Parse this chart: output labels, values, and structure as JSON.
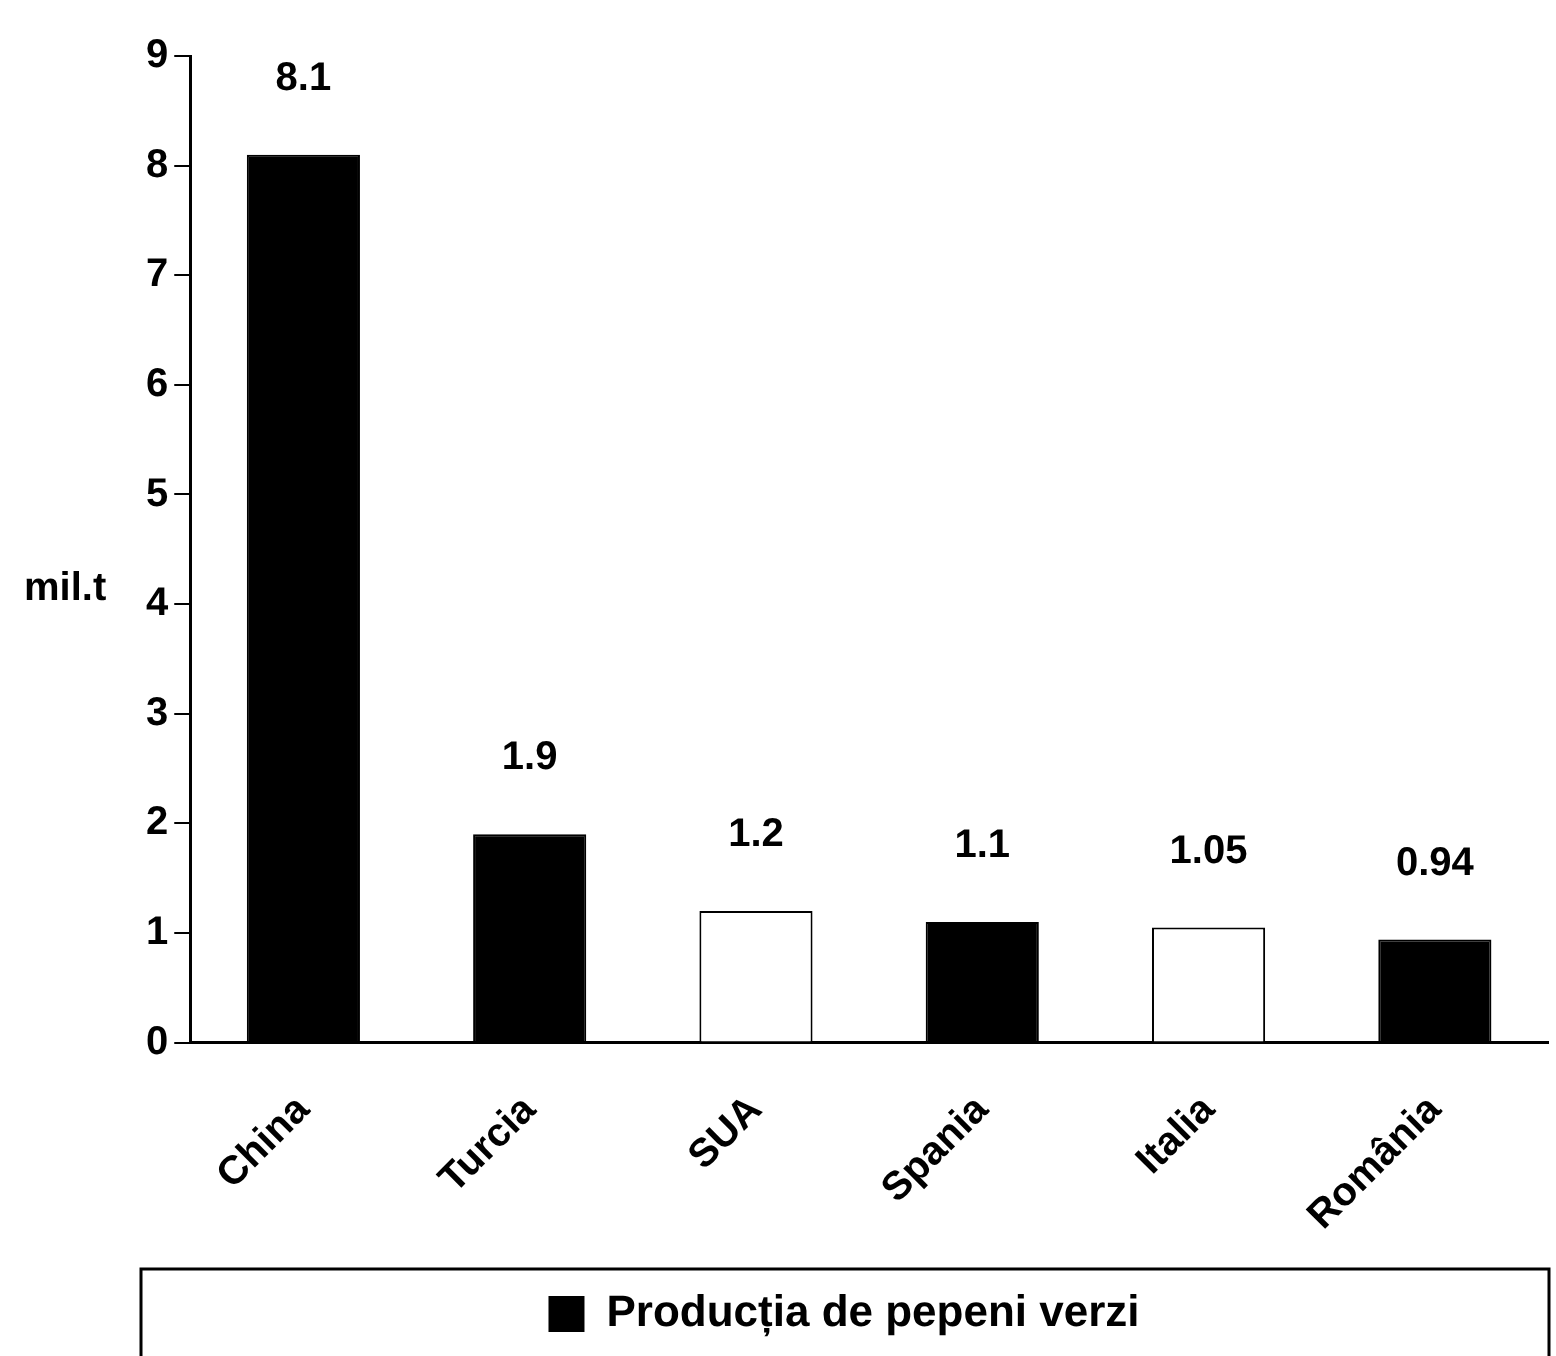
{
  "chart_data": {
    "type": "bar",
    "ylabel": "mil.t",
    "categories": [
      "China",
      "Turcia",
      "SUA",
      "Spania",
      "Italia",
      "România"
    ],
    "series": [
      {
        "name": "Producția de pepeni verzi",
        "color": "#000000",
        "colors": [
          "#000000",
          "#000000",
          "#ffffff",
          "#000000",
          "#ffffff",
          "#000000"
        ],
        "values": [
          8.1,
          1.9,
          1.2,
          1.1,
          1.05,
          0.94
        ]
      }
    ],
    "ylim": [
      0,
      9
    ],
    "yticks": [
      0,
      1,
      2,
      3,
      4,
      5,
      6,
      7,
      8,
      9
    ],
    "grid": false,
    "legend": "bottom",
    "data_labels": true
  }
}
